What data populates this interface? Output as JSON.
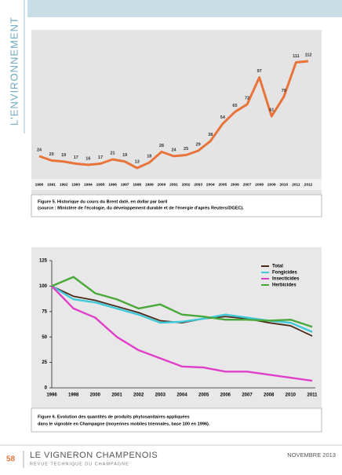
{
  "section": "L'ENVIRONNEMENT",
  "chart_data": [
    {
      "type": "line",
      "categories": [
        "1990",
        "1991",
        "1992",
        "1993",
        "1994",
        "1995",
        "1996",
        "1997",
        "1998",
        "1999",
        "2000",
        "2001",
        "2002",
        "2003",
        "2004",
        "2005",
        "2006",
        "2007",
        "2008",
        "2009",
        "2010",
        "2011",
        "2012"
      ],
      "values": [
        24,
        20,
        19,
        17,
        16,
        17,
        21,
        19,
        13,
        18,
        28,
        24,
        25,
        29,
        38,
        54,
        65,
        72,
        97,
        61,
        79,
        111,
        112
      ],
      "color": "#e8743b",
      "caption": [
        "Figure 5. Historique du cours du Brent daté, en dollar par baril",
        "(source : Ministère de l'écologie, du développement durable et de l'énergie d'après Reuters/DGEC)."
      ]
    },
    {
      "type": "line",
      "categories": [
        "1996",
        "1998",
        "2000",
        "2001",
        "2002",
        "2003",
        "2004",
        "2005",
        "2006",
        "2007",
        "2008",
        "2010",
        "2011"
      ],
      "ylim": [
        0,
        125
      ],
      "yticks": [
        0,
        25,
        50,
        75,
        100,
        125
      ],
      "series": [
        {
          "name": "Total",
          "color": "#4a2a1a",
          "values": [
            100,
            90,
            86,
            80,
            74,
            66,
            64,
            68,
            70,
            68,
            64,
            61,
            51
          ]
        },
        {
          "name": "Fongicides",
          "color": "#3fc8d8",
          "values": [
            100,
            87,
            84,
            78,
            72,
            64,
            65,
            68,
            72,
            69,
            66,
            64,
            55
          ]
        },
        {
          "name": "Insecticides",
          "color": "#e040c8",
          "values": [
            100,
            78,
            69,
            50,
            37,
            29,
            21,
            20,
            16,
            16,
            13,
            10,
            7
          ]
        },
        {
          "name": "Herbicides",
          "color": "#4aa83a",
          "values": [
            100,
            109,
            93,
            87,
            78,
            82,
            72,
            70,
            67,
            67,
            66,
            67,
            60
          ]
        }
      ],
      "caption": [
        "Figure 6. Evolution des quantités de produits phytosanitaires appliquées",
        "dans le vignoble en Champagne (moyennes mobiles triennales, base 100 en 1996)."
      ]
    }
  ],
  "footer": {
    "page": "58",
    "title": "LE VIGNERON CHAMPENOIS",
    "subtitle": "REVUE TECHNIQUE DU CHAMPAGNE",
    "date": "NOVEMBRE 2013"
  }
}
